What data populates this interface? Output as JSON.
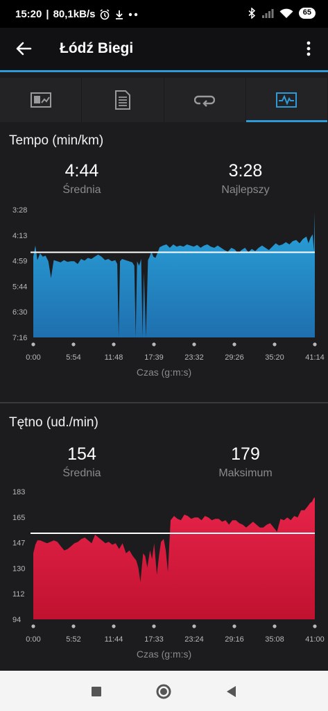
{
  "status_bar": {
    "time": "15:20",
    "network_speed": "80,1kB/s",
    "battery": "65"
  },
  "app_bar": {
    "title": "Łódź Biegi"
  },
  "tabs": [
    {
      "icon": "summary-chart-icon",
      "active": false
    },
    {
      "icon": "details-document-icon",
      "active": false
    },
    {
      "icon": "laps-loop-icon",
      "active": false
    },
    {
      "icon": "charts-pulse-icon",
      "active": true
    }
  ],
  "pace": {
    "title": "Tempo (min/km)",
    "avg_value": "4:44",
    "avg_label": "Średnia",
    "best_value": "3:28",
    "best_label": "Najlepszy"
  },
  "heart_rate": {
    "title": "Tętno (ud./min)",
    "avg_value": "154",
    "avg_label": "Średnia",
    "max_value": "179",
    "max_label": "Maksimum"
  },
  "chart_data": [
    {
      "type": "area",
      "title": "Tempo (min/km)",
      "xlabel": "Czas (g:m:s)",
      "ylabel": "",
      "y_tick_labels": [
        "3:28",
        "4:13",
        "4:59",
        "5:44",
        "6:30",
        "7:16"
      ],
      "x_tick_labels": [
        "0:00",
        "5:54",
        "11:48",
        "17:39",
        "23:32",
        "29:26",
        "35:20",
        "41:14"
      ],
      "y_inverted": true,
      "ylim_seconds": [
        208,
        436
      ],
      "xlim_minutes": [
        0,
        41.23
      ],
      "average_line_seconds": 284,
      "color": "#2aa5dc",
      "x_minutes": [
        0,
        0.3,
        0.6,
        1.0,
        1.4,
        1.8,
        2.2,
        2.6,
        3.0,
        3.5,
        4.0,
        4.5,
        5.0,
        5.5,
        6.0,
        6.5,
        7.0,
        7.5,
        8.0,
        8.5,
        9.0,
        9.5,
        10.0,
        10.5,
        11.0,
        11.5,
        12.0,
        12.3,
        12.5,
        12.7,
        13.0,
        13.5,
        14.0,
        14.5,
        14.8,
        15.0,
        15.2,
        15.5,
        15.8,
        16.0,
        16.2,
        16.5,
        16.8,
        17.0,
        17.3,
        17.6,
        17.9,
        18.2,
        18.5,
        19.0,
        19.5,
        20.0,
        20.5,
        21.0,
        21.5,
        22.0,
        22.5,
        23.0,
        23.5,
        24.0,
        24.5,
        25.0,
        25.5,
        26.0,
        26.5,
        27.0,
        27.5,
        28.0,
        28.5,
        29.0,
        29.5,
        30.0,
        30.5,
        31.0,
        31.5,
        32.0,
        32.5,
        33.0,
        33.5,
        34.0,
        34.5,
        35.0,
        35.5,
        36.0,
        36.5,
        37.0,
        37.5,
        38.0,
        38.5,
        39.0,
        39.5,
        40.0,
        40.3,
        40.6,
        40.9,
        41.1,
        41.23
      ],
      "y_seconds": [
        292,
        272,
        298,
        286,
        292,
        290,
        300,
        330,
        298,
        300,
        302,
        298,
        301,
        300,
        300,
        305,
        296,
        299,
        294,
        296,
        292,
        288,
        292,
        298,
        296,
        300,
        298,
        305,
        436,
        300,
        296,
        298,
        300,
        302,
        308,
        436,
        300,
        308,
        296,
        436,
        320,
        436,
        298,
        293,
        283,
        292,
        294,
        285,
        275,
        272,
        270,
        276,
        270,
        274,
        272,
        274,
        270,
        272,
        274,
        271,
        276,
        272,
        270,
        274,
        276,
        272,
        276,
        280,
        283,
        276,
        279,
        286,
        280,
        276,
        284,
        278,
        282,
        276,
        272,
        276,
        280,
        274,
        268,
        272,
        270,
        266,
        270,
        264,
        262,
        268,
        260,
        256,
        268,
        258,
        252,
        282,
        212
      ]
    },
    {
      "type": "area",
      "title": "Tętno (ud./min)",
      "xlabel": "Czas (g:m:s)",
      "ylabel": "",
      "y_tick_labels": [
        "183",
        "165",
        "147",
        "130",
        "112",
        "94"
      ],
      "x_tick_labels": [
        "0:00",
        "5:52",
        "11:44",
        "17:33",
        "23:24",
        "29:16",
        "35:08",
        "41:00"
      ],
      "ylim": [
        94,
        183
      ],
      "xlim_minutes": [
        0,
        41.0
      ],
      "average_line": 154,
      "color": "#e8244a",
      "x_minutes": [
        0,
        0.3,
        0.6,
        1.0,
        1.5,
        2.0,
        2.5,
        3.0,
        3.5,
        4.0,
        4.5,
        5.0,
        5.5,
        6.0,
        6.5,
        7.0,
        7.5,
        8.0,
        8.5,
        9.0,
        9.5,
        10.0,
        10.5,
        11.0,
        11.5,
        12.0,
        12.5,
        13.0,
        13.5,
        14.0,
        14.5,
        15.0,
        15.3,
        15.6,
        16.0,
        16.3,
        16.6,
        17.0,
        17.3,
        17.6,
        18.0,
        18.3,
        18.6,
        19.0,
        19.3,
        19.6,
        20.0,
        20.5,
        21.0,
        21.5,
        22.0,
        22.5,
        23.0,
        23.5,
        24.0,
        24.5,
        25.0,
        25.5,
        26.0,
        26.5,
        27.0,
        27.5,
        28.0,
        28.5,
        29.0,
        29.5,
        30.0,
        30.5,
        31.0,
        31.5,
        32.0,
        32.5,
        33.0,
        33.5,
        34.0,
        34.5,
        35.0,
        35.5,
        36.0,
        36.5,
        37.0,
        37.5,
        38.0,
        38.5,
        39.0,
        39.5,
        40.0,
        40.3,
        40.6,
        40.8,
        41.0
      ],
      "y_values": [
        140,
        146,
        149,
        149,
        148,
        147,
        148,
        149,
        148,
        145,
        142,
        143,
        145,
        147,
        148,
        150,
        151,
        149,
        147,
        153,
        151,
        149,
        147,
        148,
        146,
        147,
        143,
        147,
        140,
        142,
        138,
        135,
        130,
        120,
        140,
        138,
        130,
        142,
        136,
        147,
        125,
        138,
        148,
        150,
        142,
        127,
        163,
        166,
        164,
        163,
        167,
        166,
        164,
        165,
        165,
        163,
        166,
        165,
        163,
        164,
        164,
        162,
        163,
        160,
        163,
        163,
        161,
        160,
        158,
        160,
        162,
        160,
        158,
        158,
        160,
        161,
        158,
        155,
        164,
        163,
        165,
        163,
        166,
        165,
        170,
        170,
        173,
        175,
        176,
        178,
        179
      ]
    }
  ]
}
